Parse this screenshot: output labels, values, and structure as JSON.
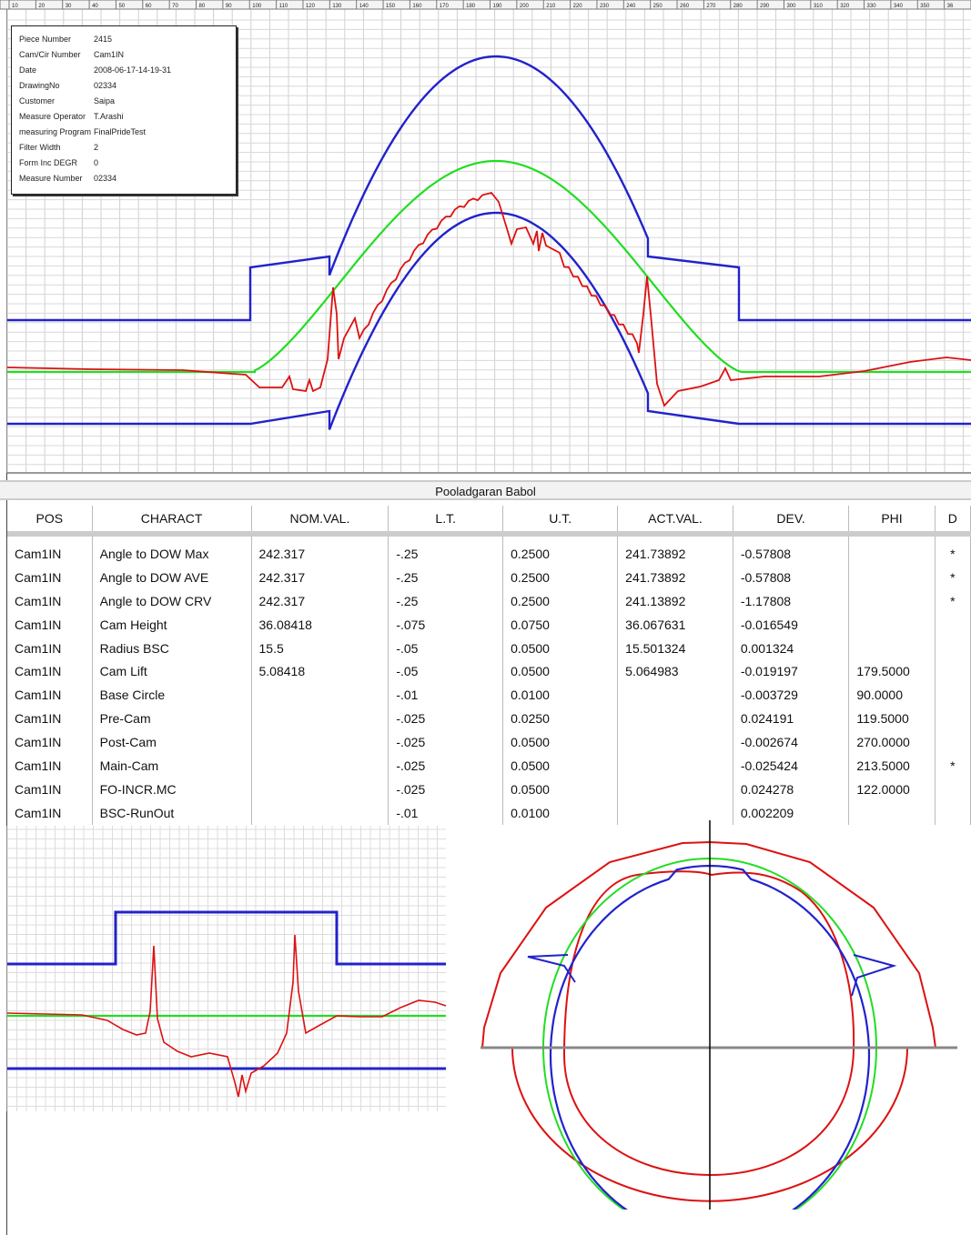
{
  "info": {
    "rows": [
      {
        "label": "Piece Number",
        "value": "2415"
      },
      {
        "label": "Cam/Cir Number",
        "value": "Cam1IN"
      },
      {
        "label": "Date",
        "value": "2008-06-17-14-19-31"
      },
      {
        "label": "DrawingNo",
        "value": "02334"
      },
      {
        "label": "Customer",
        "value": "Saipa"
      },
      {
        "label": "Measure Operator",
        "value": "T.Arashi"
      },
      {
        "label": "measuring Program",
        "value": "FinalPrideTest"
      },
      {
        "label": "Filter Width",
        "value": "2"
      },
      {
        "label": "Form Inc DEGR",
        "value": "0"
      },
      {
        "label": "Measure Number",
        "value": "02334"
      }
    ]
  },
  "company": "Pooladgaran Babol",
  "table": {
    "headers": [
      "POS",
      "CHARACT",
      "NOM.VAL.",
      "L.T.",
      "U.T.",
      "ACT.VAL.",
      "DEV.",
      "PHI",
      "D"
    ],
    "rows": [
      [
        "Cam1IN",
        "Angle to DOW Max",
        "242.317",
        "-.25",
        "0.2500",
        "241.73892",
        "-0.57808",
        "",
        "*"
      ],
      [
        "Cam1IN",
        "Angle to DOW AVE",
        "242.317",
        "-.25",
        "0.2500",
        "241.73892",
        "-0.57808",
        "",
        "*"
      ],
      [
        "Cam1IN",
        "Angle to DOW CRV",
        "242.317",
        "-.25",
        "0.2500",
        "241.13892",
        "-1.17808",
        "",
        "*"
      ],
      [
        "Cam1IN",
        "Cam Height",
        "36.08418",
        "-.075",
        "0.0750",
        "36.067631",
        "-0.016549",
        "",
        ""
      ],
      [
        "Cam1IN",
        "Radius BSC",
        "15.5",
        "-.05",
        "0.0500",
        "15.501324",
        "0.001324",
        "",
        ""
      ],
      [
        "Cam1IN",
        "Cam Lift",
        "5.08418",
        "-.05",
        "0.0500",
        "5.064983",
        "-0.019197",
        "179.5000",
        ""
      ],
      [
        "Cam1IN",
        "Base Circle",
        "",
        "-.01",
        "0.0100",
        "",
        "-0.003729",
        "90.0000",
        ""
      ],
      [
        "Cam1IN",
        "Pre-Cam",
        "",
        "-.025",
        "0.0250",
        "",
        "0.024191",
        "119.5000",
        ""
      ],
      [
        "Cam1IN",
        "Post-Cam",
        "",
        "-.025",
        "0.0500",
        "",
        "-0.002674",
        "270.0000",
        ""
      ],
      [
        "Cam1IN",
        "Main-Cam",
        "",
        "-.025",
        "0.0500",
        "",
        "-0.025424",
        "213.5000",
        "*"
      ],
      [
        "Cam1IN",
        "FO-INCR.MC",
        "",
        "-.025",
        "0.0500",
        "",
        "0.024278",
        "122.0000",
        ""
      ],
      [
        "Cam1IN",
        "BSC-RunOut",
        "",
        "-.01",
        "0.0100",
        "",
        "0.002209",
        "",
        ""
      ]
    ]
  },
  "chart_data": [
    {
      "type": "line",
      "xticks": [
        "10",
        "20",
        "30",
        "40",
        "50",
        "60",
        "70",
        "80",
        "90",
        "100",
        "110",
        "120",
        "130",
        "140",
        "150",
        "160",
        "170",
        "180",
        "190",
        "200",
        "210",
        "220",
        "230",
        "240",
        "250",
        "260",
        "270",
        "280",
        "290",
        "300",
        "310",
        "320",
        "330",
        "340",
        "350",
        "36"
      ],
      "colors": {
        "upper_tolerance": "#2222cc",
        "nominal": "#22dd22",
        "measured": "#dd1111",
        "lower_tolerance": "#2222cc"
      }
    },
    {
      "type": "line",
      "colors": {
        "upper_tolerance": "#2222cc",
        "nominal": "#22dd22",
        "measured": "#dd1111",
        "lower_tolerance": "#2222cc"
      }
    },
    {
      "type": "polar",
      "colors": {
        "tolerance": "#dd1111",
        "nominal": "#22dd22",
        "measured": "#2222cc",
        "axes": "#000000"
      }
    }
  ]
}
